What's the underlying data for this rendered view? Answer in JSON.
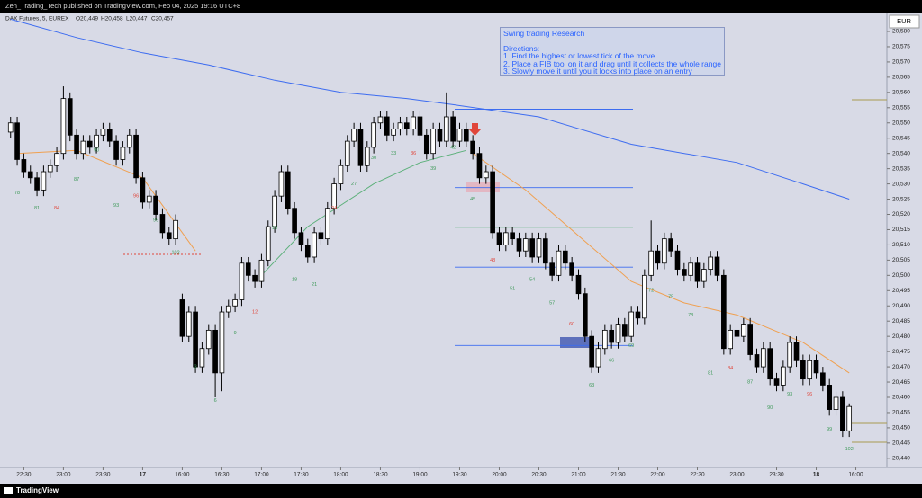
{
  "header": "Zen_Trading_Tech published on TradingView.com, Feb 04, 2025 19:16 UTC+8",
  "footer": "TradingView",
  "currency": "EUR",
  "note": {
    "title": "Swing trading Research",
    "heading": "Directions:",
    "lines": [
      "1. Find the highest or lowest tick of the move",
      "2. Place a FIB tool on it and drag until it collects the whole range",
      "3. Slowly move it until you it locks into place on an entry"
    ]
  },
  "chart_data": {
    "type": "candlestick",
    "legend": {
      "symbol": "DAX Futures, 5, EUREX",
      "ohlc": [
        "O20,449",
        "H20,458",
        "L20,447",
        "C20,457"
      ]
    },
    "up_color": "#ffffff",
    "down_color": "#000000",
    "xlim": [
      -1.6,
      132.7
    ],
    "ylim": [
      20437,
      20585.9
    ],
    "xticks": [
      {
        "value": 2,
        "label": "22:30"
      },
      {
        "value": 8,
        "label": "23:00"
      },
      {
        "value": 14,
        "label": "23:30"
      },
      {
        "value": 20,
        "label": "17"
      },
      {
        "value": 26,
        "label": "16:00"
      },
      {
        "value": 32,
        "label": "16:30"
      },
      {
        "value": 38,
        "label": "17:00"
      },
      {
        "value": 44,
        "label": "17:30"
      },
      {
        "value": 50,
        "label": "18:00"
      },
      {
        "value": 56,
        "label": "18:30"
      },
      {
        "value": 62,
        "label": "19:00"
      },
      {
        "value": 68,
        "label": "19:30"
      },
      {
        "value": 74,
        "label": "20:00"
      },
      {
        "value": 80,
        "label": "20:30"
      },
      {
        "value": 86,
        "label": "21:00"
      },
      {
        "value": 92,
        "label": "21:30"
      },
      {
        "value": 98,
        "label": "22:00"
      },
      {
        "value": 104,
        "label": "22:30"
      },
      {
        "value": 110,
        "label": "23:00"
      },
      {
        "value": 116,
        "label": "23:30"
      },
      {
        "value": 122,
        "label": "18"
      },
      {
        "value": 128,
        "label": "16:00"
      }
    ],
    "yticks": [
      {
        "value": 20440,
        "label": "20,440"
      },
      {
        "value": 20445,
        "label": "20,445"
      },
      {
        "value": 20450,
        "label": "20,450"
      },
      {
        "value": 20455,
        "label": "20,455"
      },
      {
        "value": 20460,
        "label": "20,460"
      },
      {
        "value": 20465,
        "label": "20,465"
      },
      {
        "value": 20470,
        "label": "20,470"
      },
      {
        "value": 20475,
        "label": "20,475"
      },
      {
        "value": 20480,
        "label": "20,480"
      },
      {
        "value": 20485,
        "label": "20,485"
      },
      {
        "value": 20490,
        "label": "20,490"
      },
      {
        "value": 20495,
        "label": "20,495"
      },
      {
        "value": 20500,
        "label": "20,500"
      },
      {
        "value": 20505,
        "label": "20,505"
      },
      {
        "value": 20510,
        "label": "20,510"
      },
      {
        "value": 20515,
        "label": "20,515"
      },
      {
        "value": 20520,
        "label": "20,520"
      },
      {
        "value": 20525,
        "label": "20,525"
      },
      {
        "value": 20530,
        "label": "20,530"
      },
      {
        "value": 20535,
        "label": "20,535"
      },
      {
        "value": 20540,
        "label": "20,540"
      },
      {
        "value": 20545,
        "label": "20,545"
      },
      {
        "value": 20550,
        "label": "20,550"
      },
      {
        "value": 20555,
        "label": "20,555"
      },
      {
        "value": 20560,
        "label": "20,560"
      },
      {
        "value": 20565,
        "label": "20,565"
      },
      {
        "value": 20570,
        "label": "20,570"
      },
      {
        "value": 20575,
        "label": "20,575"
      },
      {
        "value": 20580,
        "label": "20,580"
      }
    ],
    "open": [
      20547,
      20550,
      20538,
      20534,
      20532,
      20528,
      20534,
      20536,
      20540,
      20558,
      20546,
      20540,
      20544,
      20542,
      20546,
      20548,
      20544,
      20538,
      20542,
      20546,
      20532,
      20524,
      20526,
      20520,
      20514,
      20512,
      20492,
      20480,
      20488,
      20470,
      20476,
      20482,
      20468,
      20488,
      20490,
      20492,
      20504,
      20500,
      20498,
      20505,
      20516,
      20526,
      20534,
      20522,
      20514,
      20510,
      20506,
      20514,
      20512,
      20522,
      20530,
      20536,
      20544,
      20548,
      20536,
      20542,
      20550,
      20552,
      20546,
      20548,
      20550,
      20548,
      20552,
      20546,
      20540,
      20548,
      20544,
      20552,
      20544,
      20548,
      20544,
      20540,
      20532,
      20534,
      20514,
      20510,
      20514,
      20512,
      20508,
      20512,
      20506,
      20512,
      20504,
      20500,
      20508,
      20504,
      20500,
      20494,
      20480,
      20470,
      20476,
      20482,
      20478,
      20484,
      20480,
      20488,
      20486,
      20500,
      20508,
      20504,
      20512,
      20508,
      20502,
      20500,
      20504,
      20498,
      20502,
      20506,
      20500,
      20476,
      20482,
      20480,
      20484,
      20474,
      20470,
      20476,
      20466,
      20464,
      20470,
      20478,
      20472,
      20466,
      20472,
      20468,
      20464,
      20456,
      20460,
      20449
    ],
    "high": [
      20552,
      20552,
      20540,
      20536,
      20534,
      20536,
      20538,
      20542,
      20562,
      20560,
      20548,
      20546,
      20546,
      20548,
      20550,
      20550,
      20546,
      20544,
      20548,
      20548,
      20534,
      20528,
      20528,
      20522,
      20516,
      20520,
      20494,
      20490,
      20490,
      20478,
      20484,
      20484,
      20490,
      20492,
      20494,
      20506,
      20506,
      20502,
      20507,
      20518,
      20528,
      20536,
      20536,
      20524,
      20516,
      20512,
      20516,
      20516,
      20524,
      20532,
      20538,
      20546,
      20550,
      20550,
      20544,
      20552,
      20554,
      20554,
      20550,
      20552,
      20552,
      20554,
      20554,
      20548,
      20550,
      20550,
      20560,
      20554,
      20550,
      20550,
      20546,
      20542,
      20536,
      20536,
      20516,
      20516,
      20516,
      20514,
      20514,
      20514,
      20514,
      20514,
      20506,
      20510,
      20510,
      20506,
      20502,
      20496,
      20482,
      20478,
      20484,
      20484,
      20486,
      20486,
      20490,
      20490,
      20502,
      20518,
      20510,
      20514,
      20514,
      20510,
      20504,
      20506,
      20506,
      20504,
      20508,
      20508,
      20502,
      20484,
      20484,
      20486,
      20486,
      20476,
      20478,
      20478,
      20468,
      20472,
      20480,
      20480,
      20474,
      20474,
      20474,
      20470,
      20466,
      20462,
      20462,
      20458
    ],
    "low": [
      20545,
      20536,
      20532,
      20530,
      20526,
      20526,
      20532,
      20534,
      20538,
      20544,
      20538,
      20538,
      20540,
      20540,
      20544,
      20542,
      20536,
      20536,
      20540,
      20530,
      20522,
      20522,
      20518,
      20512,
      20510,
      20510,
      20478,
      20478,
      20468,
      20468,
      20474,
      20460,
      20462,
      20486,
      20488,
      20490,
      20498,
      20496,
      20496,
      20503,
      20514,
      20524,
      20520,
      20512,
      20508,
      20504,
      20504,
      20510,
      20510,
      20520,
      20528,
      20534,
      20542,
      20534,
      20534,
      20540,
      20548,
      20544,
      20544,
      20546,
      20546,
      20546,
      20544,
      20538,
      20538,
      20542,
      20542,
      20542,
      20542,
      20542,
      20538,
      20530,
      20530,
      20512,
      20508,
      20508,
      20510,
      20506,
      20506,
      20504,
      20504,
      20502,
      20498,
      20498,
      20502,
      20498,
      20492,
      20478,
      20468,
      20468,
      20474,
      20476,
      20476,
      20478,
      20478,
      20484,
      20484,
      20498,
      20502,
      20502,
      20506,
      20500,
      20498,
      20498,
      20496,
      20496,
      20500,
      20498,
      20474,
      20474,
      20478,
      20478,
      20472,
      20468,
      20468,
      20464,
      20462,
      20462,
      20468,
      20470,
      20464,
      20464,
      20466,
      20462,
      20454,
      20454,
      20447,
      20447
    ],
    "close": [
      20550,
      20538,
      20534,
      20532,
      20528,
      20534,
      20536,
      20540,
      20558,
      20546,
      20540,
      20544,
      20542,
      20546,
      20548,
      20544,
      20538,
      20542,
      20546,
      20532,
      20524,
      20526,
      20520,
      20514,
      20512,
      20518,
      20480,
      20488,
      20470,
      20476,
      20482,
      20468,
      20488,
      20490,
      20492,
      20504,
      20500,
      20498,
      20505,
      20516,
      20526,
      20534,
      20522,
      20514,
      20510,
      20506,
      20514,
      20512,
      20522,
      20530,
      20536,
      20544,
      20548,
      20536,
      20542,
      20550,
      20552,
      20546,
      20548,
      20550,
      20548,
      20552,
      20546,
      20540,
      20548,
      20544,
      20552,
      20544,
      20548,
      20544,
      20540,
      20532,
      20534,
      20514,
      20510,
      20514,
      20512,
      20508,
      20512,
      20506,
      20512,
      20504,
      20500,
      20508,
      20504,
      20500,
      20494,
      20480,
      20470,
      20476,
      20482,
      20478,
      20484,
      20480,
      20488,
      20486,
      20500,
      20508,
      20504,
      20512,
      20508,
      20502,
      20500,
      20504,
      20498,
      20502,
      20506,
      20500,
      20476,
      20482,
      20480,
      20484,
      20474,
      20470,
      20476,
      20466,
      20464,
      20470,
      20478,
      20472,
      20466,
      20472,
      20468,
      20464,
      20456,
      20460,
      20449,
      20457
    ],
    "series": [
      {
        "color": "#3d6cf0",
        "x": [
          0,
          10,
          20,
          30,
          40,
          50,
          60,
          67,
          80,
          94,
          110,
          120,
          127
        ],
        "values": [
          20584,
          20578,
          20573,
          20569,
          20564,
          20560,
          20558,
          20556,
          20552,
          20543,
          20537,
          20530,
          20525
        ]
      },
      {
        "color": "#f0a050",
        "x": [
          1,
          10,
          20,
          28,
          29,
          70,
          78,
          86,
          94,
          102,
          110,
          120,
          127
        ],
        "values": [
          20540,
          20541,
          20532,
          20508,
          null,
          20540,
          20528,
          20513,
          20498,
          20491,
          20487,
          20478,
          20468
        ]
      },
      {
        "color": "#5cb07a",
        "x": [
          38,
          45,
          55,
          62,
          69
        ],
        "values": [
          20500,
          20516,
          20530,
          20537,
          20541
        ]
      }
    ],
    "levels": [
      {
        "color": "#3d6cf0",
        "values": [
          20554.5,
          20528.8,
          20502.7,
          20477
        ]
      },
      {
        "color": "#5cb07a",
        "values": [
          20515.8
        ]
      }
    ],
    "annotations": [
      {
        "text": "78",
        "bar": 1,
        "price": 20527,
        "color": "#3f9a5a"
      },
      {
        "text": "81",
        "bar": 4,
        "price": 20522,
        "color": "#3f9a5a"
      },
      {
        "text": "84",
        "bar": 7,
        "price": 20522,
        "color": "#e0453a"
      },
      {
        "text": "87",
        "bar": 10,
        "price": 20531.5,
        "color": "#3f9a5a"
      },
      {
        "text": "90",
        "bar": 13,
        "price": 20541,
        "color": "#3f9a5a"
      },
      {
        "text": "93",
        "bar": 16,
        "price": 20523,
        "color": "#3f9a5a"
      },
      {
        "text": "96",
        "bar": 19,
        "price": 20526,
        "color": "#e0453a"
      },
      {
        "text": "99",
        "bar": 22,
        "price": 20518,
        "color": "#3f9a5a"
      },
      {
        "text": "102",
        "bar": 25,
        "price": 20507.5,
        "color": "#3f9a5a"
      },
      {
        "text": "3",
        "bar": 28,
        "price": 20470,
        "color": "#3f9a5a"
      },
      {
        "text": "6",
        "bar": 31,
        "price": 20459,
        "color": "#3f9a5a"
      },
      {
        "text": "9",
        "bar": 34,
        "price": 20481,
        "color": "#3f9a5a"
      },
      {
        "text": "12",
        "bar": 37,
        "price": 20488,
        "color": "#e0453a"
      },
      {
        "text": "15",
        "bar": 40,
        "price": 20515.5,
        "color": "#3f9a5a"
      },
      {
        "text": "18",
        "bar": 43,
        "price": 20498.6,
        "color": "#3f9a5a"
      },
      {
        "text": "21",
        "bar": 46,
        "price": 20497,
        "color": "#3f9a5a"
      },
      {
        "text": "24",
        "bar": 49,
        "price": 20522,
        "color": "#e0453a"
      },
      {
        "text": "27",
        "bar": 52,
        "price": 20530,
        "color": "#3f9a5a"
      },
      {
        "text": "30",
        "bar": 55,
        "price": 20538.6,
        "color": "#3f9a5a"
      },
      {
        "text": "33",
        "bar": 58,
        "price": 20540,
        "color": "#3f9a5a"
      },
      {
        "text": "36",
        "bar": 61,
        "price": 20540,
        "color": "#e0453a"
      },
      {
        "text": "39",
        "bar": 64,
        "price": 20535,
        "color": "#3f9a5a"
      },
      {
        "text": "42",
        "bar": 67,
        "price": 20542,
        "color": "#3f9a5a"
      },
      {
        "text": "45",
        "bar": 70,
        "price": 20525,
        "color": "#3f9a5a"
      },
      {
        "text": "48",
        "bar": 73,
        "price": 20505,
        "color": "#e0453a"
      },
      {
        "text": "51",
        "bar": 76,
        "price": 20495.6,
        "color": "#3f9a5a"
      },
      {
        "text": "54",
        "bar": 79,
        "price": 20498.6,
        "color": "#3f9a5a"
      },
      {
        "text": "57",
        "bar": 82,
        "price": 20491,
        "color": "#3f9a5a"
      },
      {
        "text": "60",
        "bar": 85,
        "price": 20484,
        "color": "#e0453a"
      },
      {
        "text": "63",
        "bar": 88,
        "price": 20464,
        "color": "#3f9a5a"
      },
      {
        "text": "66",
        "bar": 91,
        "price": 20472,
        "color": "#3f9a5a"
      },
      {
        "text": "69",
        "bar": 94,
        "price": 20477,
        "color": "#3f9a5a"
      },
      {
        "text": "72",
        "bar": 97,
        "price": 20495,
        "color": "#3f9a5a"
      },
      {
        "text": "75",
        "bar": 100,
        "price": 20493,
        "color": "#3f9a5a"
      },
      {
        "text": "78",
        "bar": 103,
        "price": 20487,
        "color": "#3f9a5a"
      },
      {
        "text": "81",
        "bar": 106,
        "price": 20468,
        "color": "#3f9a5a"
      },
      {
        "text": "84",
        "bar": 109,
        "price": 20469.6,
        "color": "#e0453a"
      },
      {
        "text": "87",
        "bar": 112,
        "price": 20465,
        "color": "#3f9a5a"
      },
      {
        "text": "90",
        "bar": 115,
        "price": 20456.6,
        "color": "#3f9a5a"
      },
      {
        "text": "93",
        "bar": 118,
        "price": 20461,
        "color": "#3f9a5a"
      },
      {
        "text": "96",
        "bar": 121,
        "price": 20461,
        "color": "#e0453a"
      },
      {
        "text": "99",
        "bar": 124,
        "price": 20449.5,
        "color": "#3f9a5a"
      },
      {
        "text": "102",
        "bar": 127,
        "price": 20443,
        "color": "#3f9a5a"
      }
    ]
  }
}
